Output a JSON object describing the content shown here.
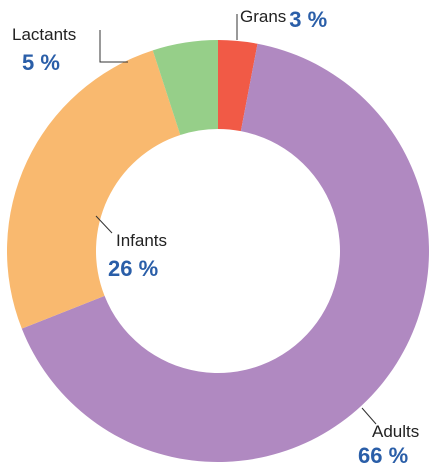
{
  "chart_data": {
    "type": "donut",
    "categories": [
      "Grans",
      "Adults",
      "Infants",
      "Lactants"
    ],
    "values": [
      3,
      66,
      26,
      5
    ],
    "value_labels": [
      "3 %",
      "66 %",
      "26 %",
      "5 %"
    ],
    "colors": [
      "#f15a46",
      "#b089c1",
      "#f9b96f",
      "#96cf89"
    ]
  }
}
